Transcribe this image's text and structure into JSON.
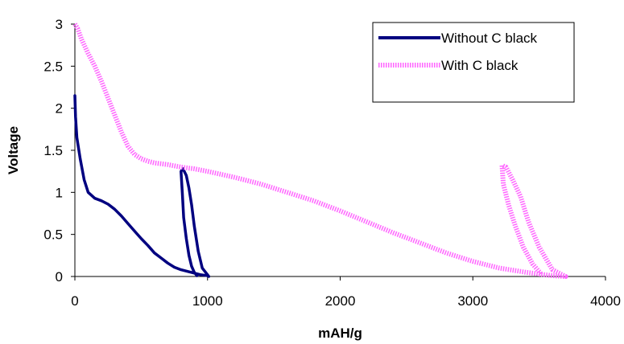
{
  "chart_data": {
    "type": "line",
    "title": "",
    "xlabel": "mAH/g",
    "ylabel": "Voltage",
    "xlim": [
      0,
      4000
    ],
    "ylim": [
      0,
      3
    ],
    "x_ticks": [
      "0",
      "1000",
      "2000",
      "3000",
      "4000"
    ],
    "y_ticks": [
      "0",
      "0.5",
      "1",
      "1.5",
      "2",
      "2.5",
      "3"
    ],
    "grid": false,
    "legend_position": "top-right",
    "series": [
      {
        "name": "Without C black",
        "color": "#000080",
        "style": "solid",
        "points": [
          [
            0,
            2.15
          ],
          [
            5,
            1.9
          ],
          [
            15,
            1.65
          ],
          [
            40,
            1.4
          ],
          [
            70,
            1.15
          ],
          [
            100,
            1.0
          ],
          [
            150,
            0.93
          ],
          [
            200,
            0.9
          ],
          [
            250,
            0.86
          ],
          [
            300,
            0.8
          ],
          [
            350,
            0.72
          ],
          [
            400,
            0.63
          ],
          [
            450,
            0.54
          ],
          [
            500,
            0.45
          ],
          [
            550,
            0.37
          ],
          [
            600,
            0.28
          ],
          [
            650,
            0.22
          ],
          [
            700,
            0.16
          ],
          [
            750,
            0.11
          ],
          [
            800,
            0.08
          ],
          [
            850,
            0.06
          ],
          [
            900,
            0.04
          ],
          [
            950,
            0.02
          ],
          [
            1000,
            0.01
          ],
          [
            1010,
            0.0
          ],
          [
            1000,
            0.02
          ],
          [
            960,
            0.1
          ],
          [
            930,
            0.3
          ],
          [
            900,
            0.6
          ],
          [
            880,
            0.85
          ],
          [
            860,
            1.05
          ],
          [
            840,
            1.2
          ],
          [
            815,
            1.28
          ],
          [
            800,
            1.25
          ],
          [
            810,
            1.0
          ],
          [
            820,
            0.7
          ],
          [
            840,
            0.45
          ],
          [
            860,
            0.25
          ],
          [
            880,
            0.12
          ],
          [
            900,
            0.05
          ],
          [
            920,
            0.01
          ]
        ]
      },
      {
        "name": "With C black",
        "color": "#ff66ff",
        "style": "dotted",
        "points": [
          [
            0,
            3.0
          ],
          [
            20,
            2.95
          ],
          [
            50,
            2.82
          ],
          [
            100,
            2.65
          ],
          [
            150,
            2.5
          ],
          [
            200,
            2.32
          ],
          [
            250,
            2.12
          ],
          [
            300,
            1.92
          ],
          [
            350,
            1.72
          ],
          [
            400,
            1.55
          ],
          [
            450,
            1.45
          ],
          [
            500,
            1.4
          ],
          [
            550,
            1.37
          ],
          [
            600,
            1.35
          ],
          [
            700,
            1.33
          ],
          [
            800,
            1.3
          ],
          [
            900,
            1.28
          ],
          [
            1000,
            1.25
          ],
          [
            1200,
            1.18
          ],
          [
            1400,
            1.1
          ],
          [
            1600,
            1.0
          ],
          [
            1800,
            0.9
          ],
          [
            2000,
            0.78
          ],
          [
            2200,
            0.65
          ],
          [
            2400,
            0.52
          ],
          [
            2600,
            0.4
          ],
          [
            2800,
            0.28
          ],
          [
            3000,
            0.18
          ],
          [
            3200,
            0.1
          ],
          [
            3400,
            0.05
          ],
          [
            3500,
            0.03
          ],
          [
            3600,
            0.01
          ],
          [
            3700,
            0.0
          ],
          [
            3600,
            0.08
          ],
          [
            3500,
            0.35
          ],
          [
            3420,
            0.65
          ],
          [
            3360,
            0.95
          ],
          [
            3300,
            1.15
          ],
          [
            3250,
            1.3
          ],
          [
            3220,
            1.32
          ],
          [
            3230,
            1.1
          ],
          [
            3270,
            0.85
          ],
          [
            3320,
            0.6
          ],
          [
            3380,
            0.35
          ],
          [
            3450,
            0.15
          ],
          [
            3520,
            0.02
          ]
        ]
      }
    ]
  }
}
